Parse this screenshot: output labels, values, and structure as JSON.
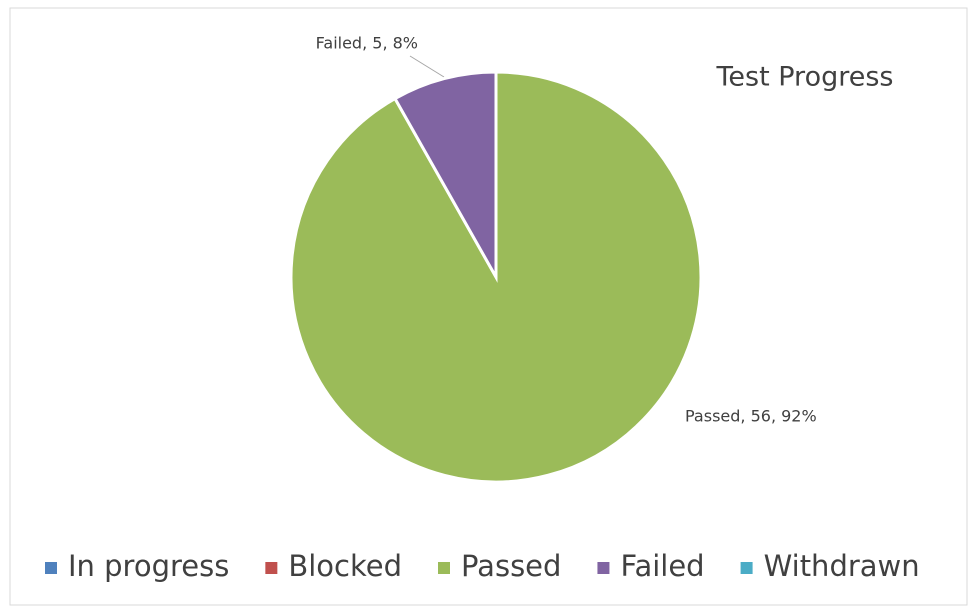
{
  "chart_data": {
    "type": "pie",
    "title": "Test Progress",
    "categories": [
      "In progress",
      "Blocked",
      "Passed",
      "Failed",
      "Withdrawn"
    ],
    "values": [
      0,
      0,
      56,
      5,
      0
    ],
    "value_labels": [
      null,
      null,
      "Passed, 56, 92%",
      "Failed, 5, 8%",
      null
    ],
    "colors": [
      "#4f81bd",
      "#c0504d",
      "#9bbb59",
      "#8064a2",
      "#4bacc6"
    ],
    "legend": "bottom"
  }
}
